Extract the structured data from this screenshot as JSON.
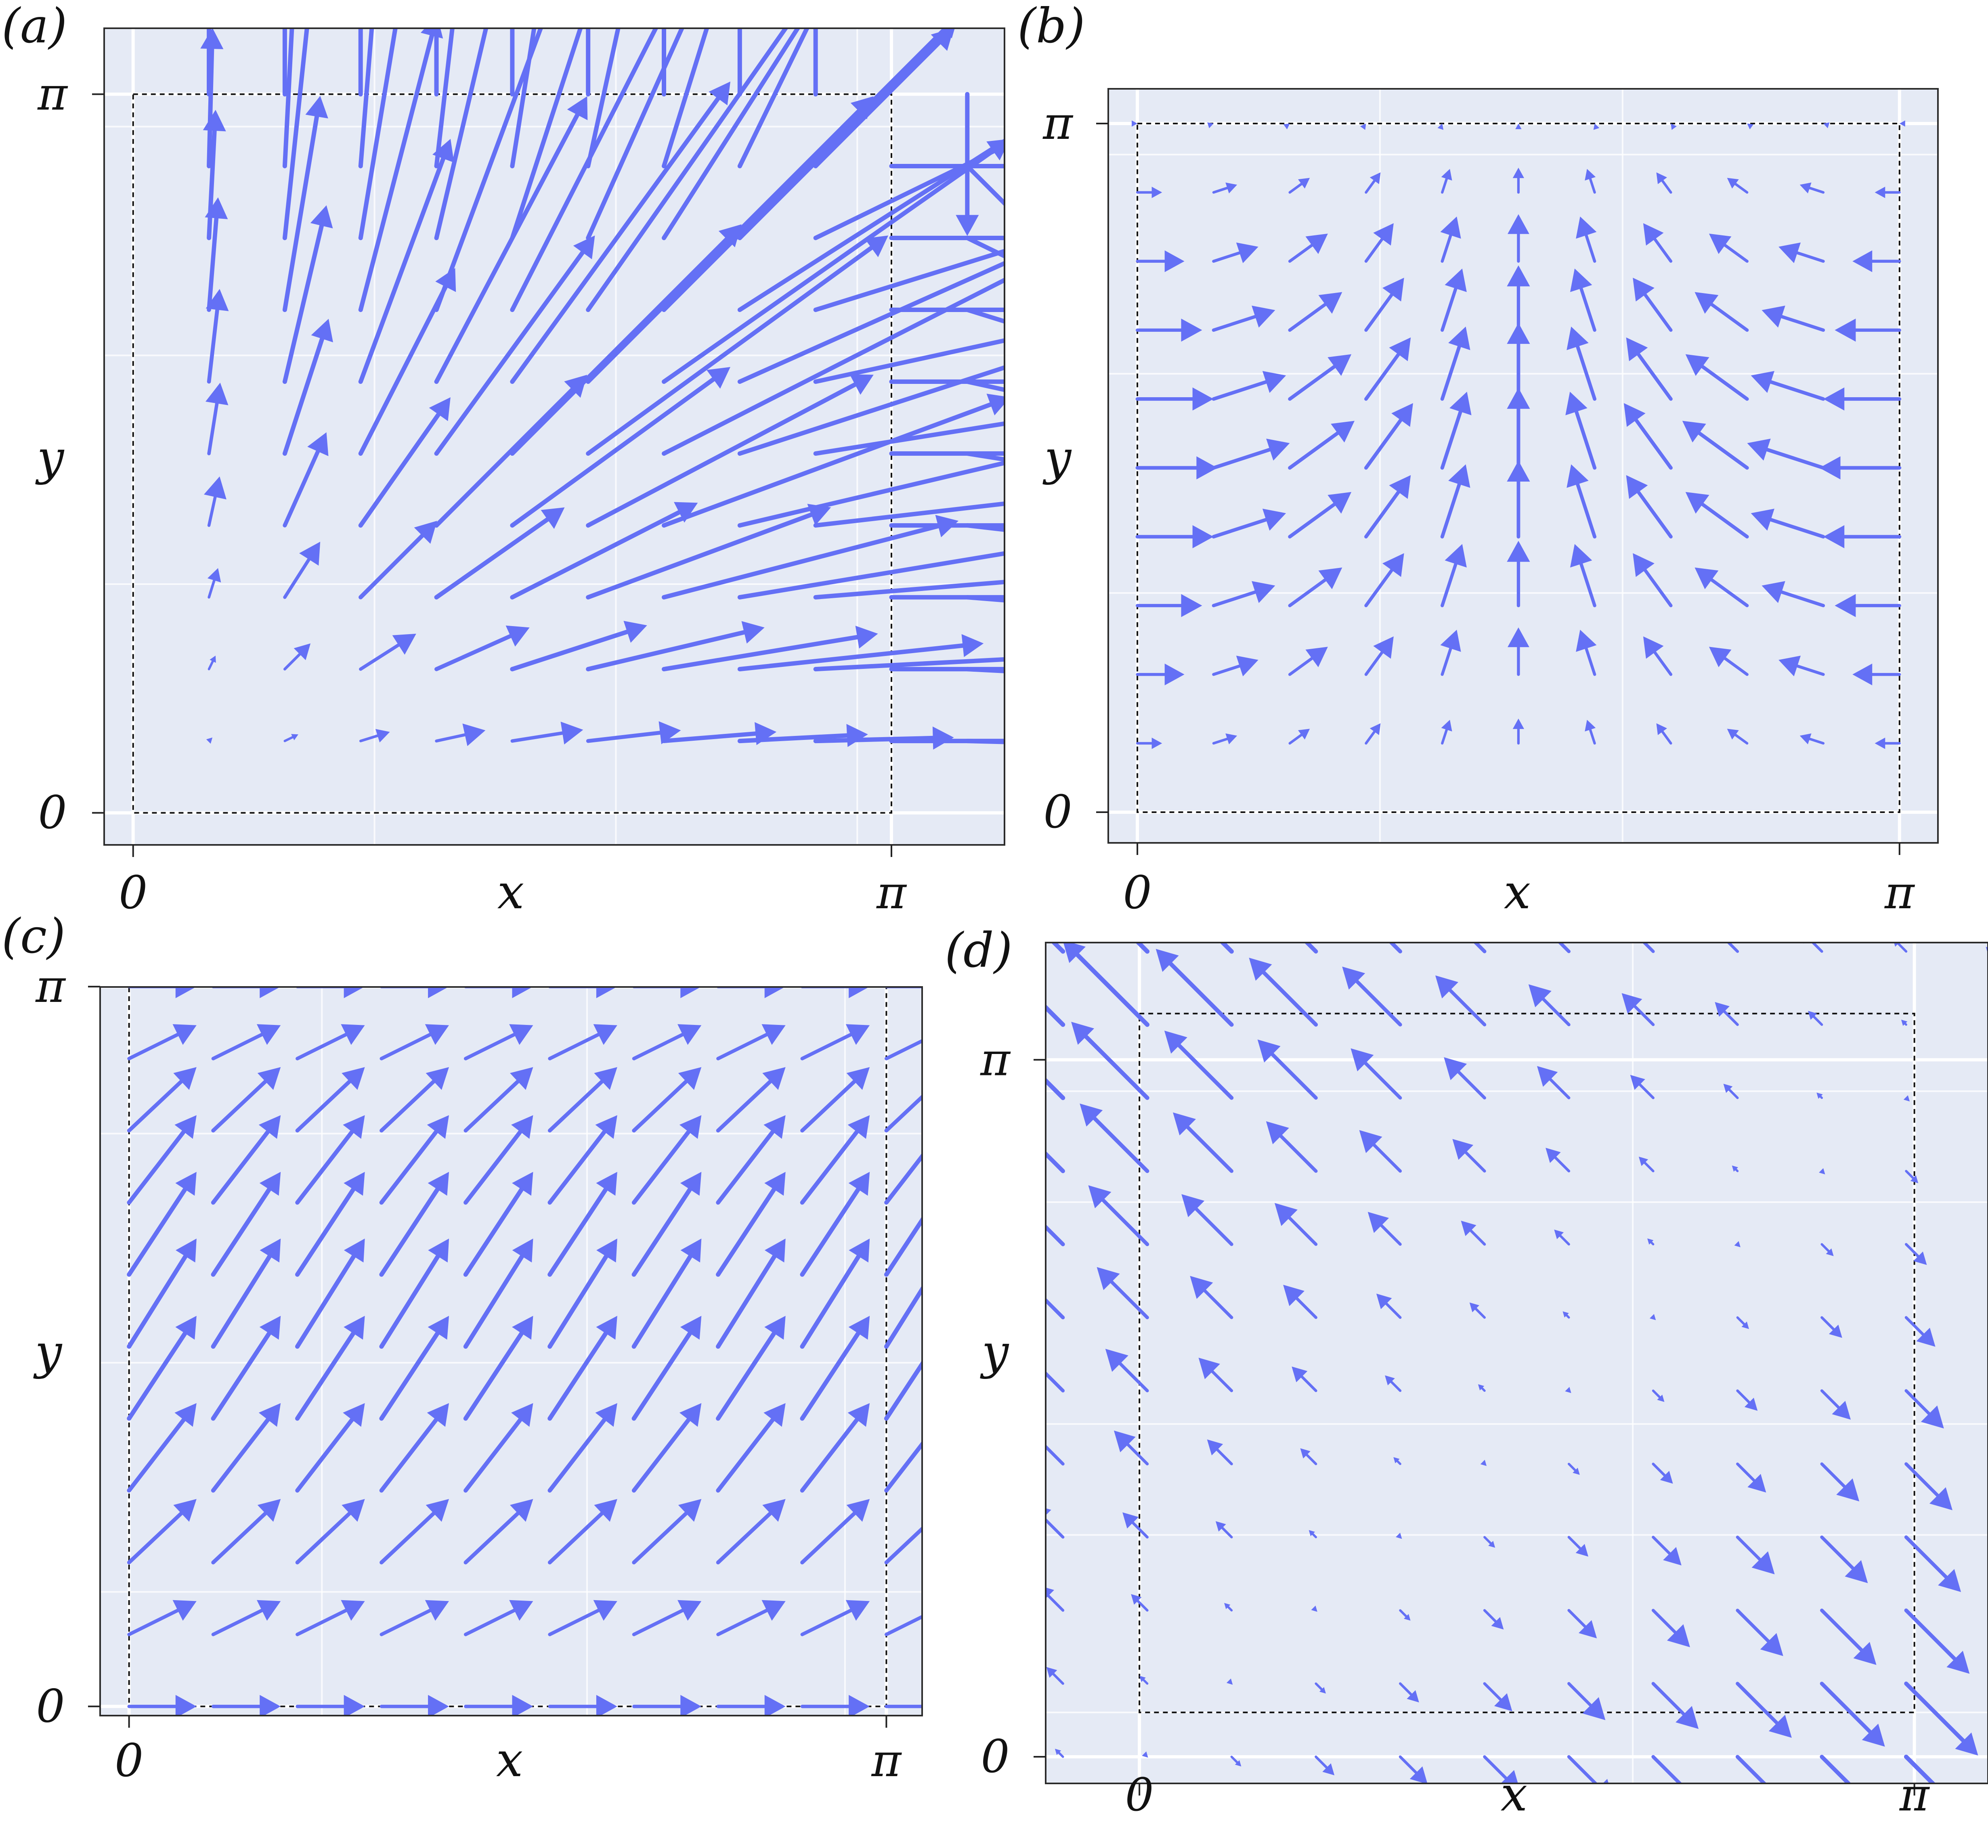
{
  "colors": {
    "arrow": "#6470f5",
    "plot_background": "#e5eaf5",
    "grid": "#ffffff",
    "frame": "#2b2b2b"
  },
  "chart_data": [
    {
      "id": "a",
      "label": "(a)",
      "type": "quiver",
      "xlabel": "x",
      "ylabel": "y",
      "xlim": [
        -0.12,
        3.61
      ],
      "ylim": [
        -0.14,
        3.43
      ],
      "xticks": [
        {
          "value": 0,
          "label": "0"
        },
        {
          "value": 3.14159,
          "label": "π"
        }
      ],
      "yticks": [
        {
          "value": 0,
          "label": "0"
        },
        {
          "value": 3.14159,
          "label": "π"
        }
      ],
      "grid_x": [
        1.0,
        2.0,
        3.0
      ],
      "grid_y": [
        0.0,
        1.0,
        2.0,
        3.0
      ],
      "domain_box": [
        0,
        3.14159,
        0,
        3.14159
      ],
      "field": {
        "u": "(1 - cos(x)) * sin(y)",
        "v": "sin(x) * (1 - cos(y))",
        "x_grid": {
          "start": 0,
          "stop": 3.4558,
          "count": 12
        },
        "y_grid": {
          "start": 0,
          "stop": 3.14159,
          "count": 11
        },
        "scale": 0.95
      }
    },
    {
      "id": "b",
      "label": "(b)",
      "type": "quiver",
      "xlabel": "x",
      "ylabel": "y",
      "xlim": [
        -0.12,
        3.3
      ],
      "ylim": [
        -0.14,
        3.3
      ],
      "xticks": [
        {
          "value": 0,
          "label": "0"
        },
        {
          "value": 3.14159,
          "label": "π"
        }
      ],
      "yticks": [
        {
          "value": 0,
          "label": "0"
        },
        {
          "value": 3.14159,
          "label": "π"
        }
      ],
      "grid_x": [
        1.0,
        2.0
      ],
      "grid_y": [
        0.0,
        1.0,
        2.0,
        3.0
      ],
      "domain_box": [
        0,
        3.14159,
        0,
        3.14159
      ],
      "field": {
        "u": "cos(x) * sin(y)",
        "v": "sin(x) * sin(y)",
        "x_grid": {
          "start": 0,
          "stop": 3.14159,
          "count": 11
        },
        "y_grid": {
          "start": 0,
          "stop": 3.14159,
          "count": 11
        },
        "scale": 0.33
      }
    },
    {
      "id": "c",
      "label": "(c)",
      "type": "quiver",
      "xlabel": "x",
      "ylabel": "y",
      "xlim": [
        -0.12,
        3.29
      ],
      "ylim": [
        -0.04,
        3.14
      ],
      "xticks": [
        {
          "value": 0,
          "label": "0"
        },
        {
          "value": 3.14159,
          "label": "π"
        }
      ],
      "yticks": [
        {
          "value": 0,
          "label": "0"
        },
        {
          "value": 3.14159,
          "label": "π"
        }
      ],
      "grid_x": [
        0.8,
        1.9,
        2.97
      ],
      "grid_y": [
        0.5,
        1.5,
        2.5
      ],
      "domain_box": [
        0,
        3.14159,
        0,
        3.14159
      ],
      "field": {
        "u": "1",
        "v": "1.6 * sin(y)",
        "x_grid": {
          "start": 0,
          "stop": 3.14159,
          "count": 10
        },
        "y_grid": {
          "start": 0,
          "stop": 3.14159,
          "count": 11
        },
        "scale": 0.28
      }
    },
    {
      "id": "d",
      "label": "(d)",
      "type": "quiver",
      "xlabel": "x",
      "ylabel": "y",
      "xlim": [
        -0.38,
        3.44
      ],
      "ylim": [
        -0.12,
        3.67
      ],
      "xticks": [
        {
          "value": 0,
          "label": "0"
        },
        {
          "value": 3.14159,
          "label": "π"
        }
      ],
      "yticks": [
        {
          "value": 0,
          "label": "0"
        },
        {
          "value": 3.14159,
          "label": "π"
        }
      ],
      "grid_x": [
        0.0,
        2.0
      ],
      "grid_y": [
        0.2,
        1.0,
        1.5,
        2.5,
        3.0
      ],
      "domain_box": [
        0,
        3.14159,
        0.2,
        3.35
      ],
      "field": {
        "u": "x - y",
        "v": "y - x",
        "x_grid": {
          "start": -0.31,
          "stop": 3.45,
          "count": 12
        },
        "y_grid": {
          "start": 0.0,
          "stop": 3.63,
          "count": 12
        },
        "scale": 0.105
      }
    }
  ]
}
